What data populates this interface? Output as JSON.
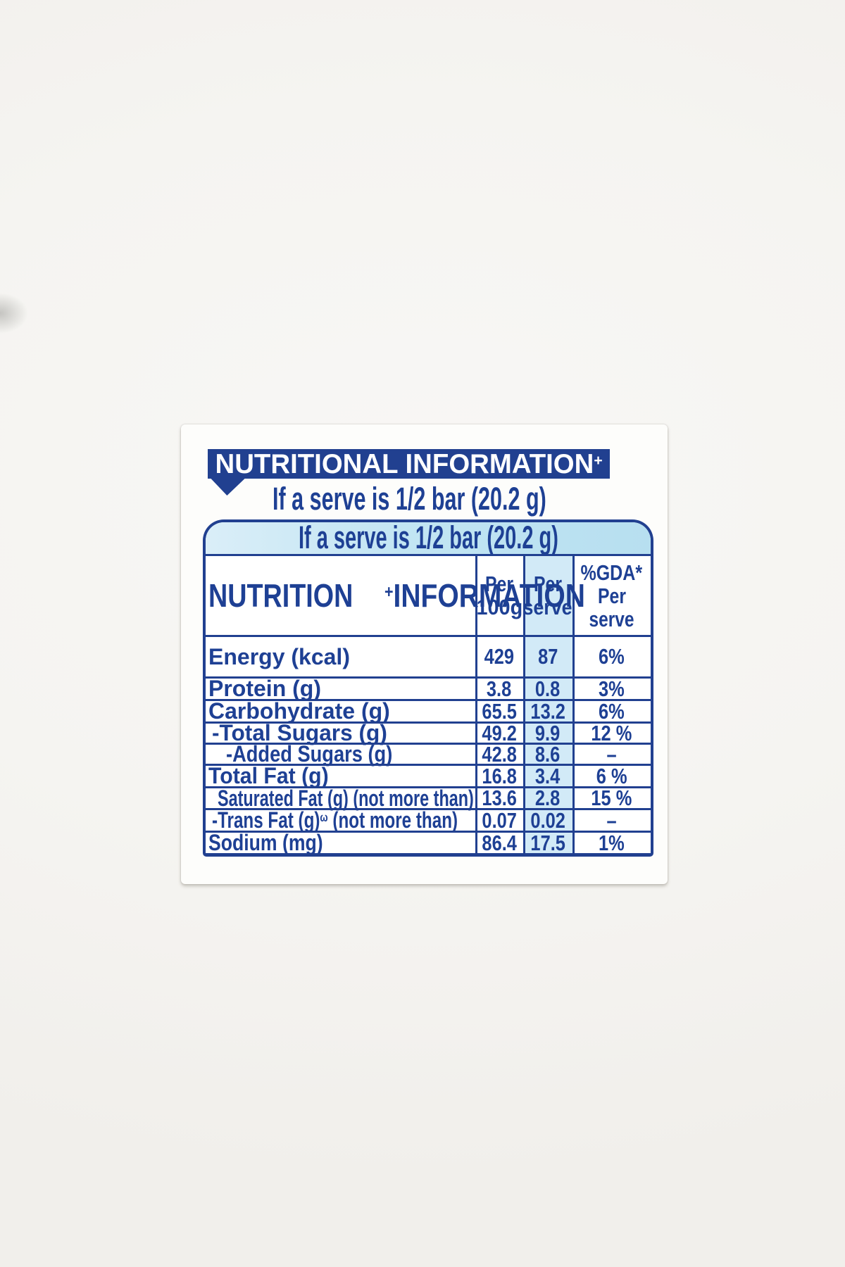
{
  "colors": {
    "accent_blue": "#214090",
    "text_blue": "#1e4094",
    "band_light_blue": "#c2e5f3",
    "per_serve_column_blue": "#d2eaf7",
    "banner_text": "#ffffff",
    "card_bg": "#fdfdfb",
    "page_bg": "#f5f4f1"
  },
  "banner": {
    "text": "NUTRITIONAL INFORMATION",
    "sup": "+"
  },
  "serve_line": "If a serve is 1/2 bar (20.2 g)",
  "table": {
    "band_text": "If a serve is 1/2 bar (20.2 g)",
    "header": {
      "label_lines": [
        {
          "t": "NUTRITION"
        },
        {
          "t": "INFORMATION",
          "sup": "+"
        }
      ],
      "col_per_100g": [
        "Per",
        "100g"
      ],
      "col_per_serve": [
        "Per",
        "serve"
      ],
      "col_gda": [
        "%GDA*",
        "Per",
        "serve"
      ]
    },
    "rows": [
      {
        "label": "Energy (kcal)",
        "per_100g": "429",
        "per_serve": "87",
        "gda": "6%"
      },
      {
        "label": "Protein (g)",
        "per_100g": "3.8",
        "per_serve": "0.8",
        "gda": "3%"
      },
      {
        "label": "Carbohydrate (g)",
        "per_100g": "65.5",
        "per_serve": "13.2",
        "gda": "6%"
      },
      {
        "label": "-Total Sugars (g)",
        "per_100g": "49.2",
        "per_serve": "9.9",
        "gda": "12 %"
      },
      {
        "label": "-Added Sugars (g)",
        "per_100g": "42.8",
        "per_serve": "8.6",
        "gda": "–"
      },
      {
        "label": "Total Fat (g)",
        "per_100g": "16.8",
        "per_serve": "3.4",
        "gda": "6 %"
      },
      {
        "label": "Saturated Fat (g) (not more than)",
        "per_100g": "13.6",
        "per_serve": "2.8",
        "gda": "15 %"
      },
      {
        "label": "-Trans Fat (g)",
        "label_sup": "ω",
        "label_after": " (not more than)",
        "per_100g": "0.07",
        "per_serve": "0.02",
        "gda": "–"
      },
      {
        "label": "Sodium (mg)",
        "per_100g": "86.4",
        "per_serve": "17.5",
        "gda": "1%"
      }
    ]
  }
}
